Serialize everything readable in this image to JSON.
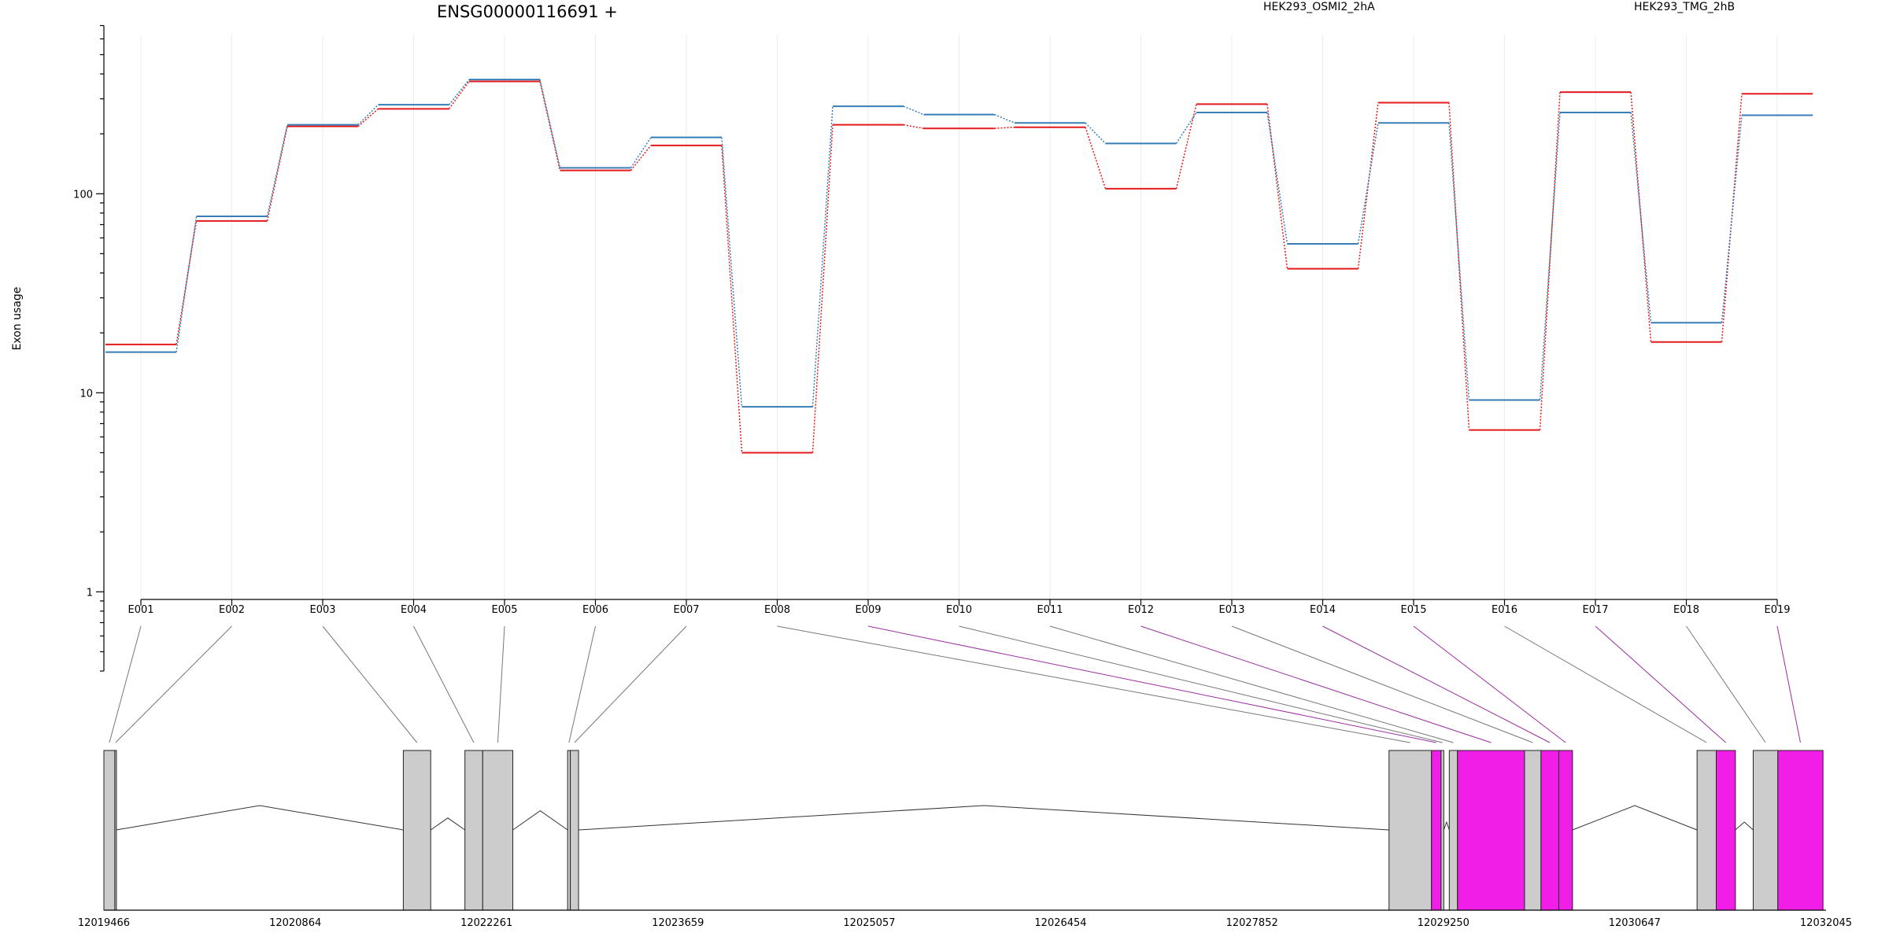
{
  "chart_data": {
    "type": "line",
    "title": "ENSG00000116691 +",
    "ylabel": "Exon usage",
    "yscale": "log",
    "ylim": [
      0.4,
      700
    ],
    "yticks": [
      1,
      10,
      100
    ],
    "yticks_labels": [
      "1",
      "10",
      "100"
    ],
    "grid": "vertical",
    "legend_position": "top-right",
    "categories": [
      "E001",
      "E002",
      "E003",
      "E004",
      "E005",
      "E006",
      "E007",
      "E008",
      "E009",
      "E010",
      "E011",
      "E012",
      "E013",
      "E014",
      "E015",
      "E016",
      "E017",
      "E018",
      "E019"
    ],
    "series": [
      {
        "name": "HEK293_OSMI2_2hA",
        "color": "#e41a1c",
        "values": [
          17.5,
          73,
          218,
          267,
          367,
          131,
          175,
          5,
          222,
          213,
          216,
          106,
          282,
          42,
          287,
          6.5,
          324,
          18,
          318
        ]
      },
      {
        "name": "HEK293_TMG_2hB",
        "color": "#377eb8",
        "values": [
          16,
          77,
          222,
          280,
          375,
          135,
          192,
          8.5,
          275,
          250,
          227,
          179,
          256,
          56,
          227,
          9.2,
          256,
          22.5,
          248
        ]
      }
    ],
    "gene_model": {
      "coordinate_ticks": [
        "12019466",
        "12020864",
        "12022261",
        "12023659",
        "12025057",
        "12026454",
        "12027852",
        "12029250",
        "12030647",
        "12032045"
      ],
      "coord_range": [
        12019466,
        12032045
      ],
      "exon_fill": "#cccccc",
      "highlight_fill": "#f01ee6",
      "exons": [
        {
          "id": "E001",
          "start": 12019466,
          "end": 12019546
        },
        {
          "id": "E002",
          "start": 12019546,
          "end": 12019556
        },
        {
          "id": "E003",
          "start": 12021653,
          "end": 12021853
        },
        {
          "id": "E004",
          "start": 12022103,
          "end": 12022233
        },
        {
          "id": "E005",
          "start": 12022233,
          "end": 12022453
        },
        {
          "id": "E006",
          "start": 12022853,
          "end": 12022873
        },
        {
          "id": "E007",
          "start": 12022873,
          "end": 12022933
        },
        {
          "id": "E008",
          "start": 12028853,
          "end": 12029163
        },
        {
          "id": "E009",
          "start": 12029163,
          "end": 12029233,
          "highlight": true
        },
        {
          "id": "E010",
          "start": 12029233,
          "end": 12029253
        },
        {
          "id": "E011",
          "start": 12029293,
          "end": 12029353
        },
        {
          "id": "E012",
          "start": 12029353,
          "end": 12029843,
          "highlight": true
        },
        {
          "id": "E013",
          "start": 12029843,
          "end": 12029963
        },
        {
          "id": "E014",
          "start": 12029963,
          "end": 12030093,
          "highlight": true
        },
        {
          "id": "E015",
          "start": 12030093,
          "end": 12030193,
          "highlight": true
        },
        {
          "id": "E016",
          "start": 12031103,
          "end": 12031243
        },
        {
          "id": "E017",
          "start": 12031243,
          "end": 12031383,
          "highlight": true
        },
        {
          "id": "E018",
          "start": 12031513,
          "end": 12031693
        },
        {
          "id": "E019",
          "start": 12031693,
          "end": 12032023,
          "highlight": true
        }
      ]
    }
  }
}
